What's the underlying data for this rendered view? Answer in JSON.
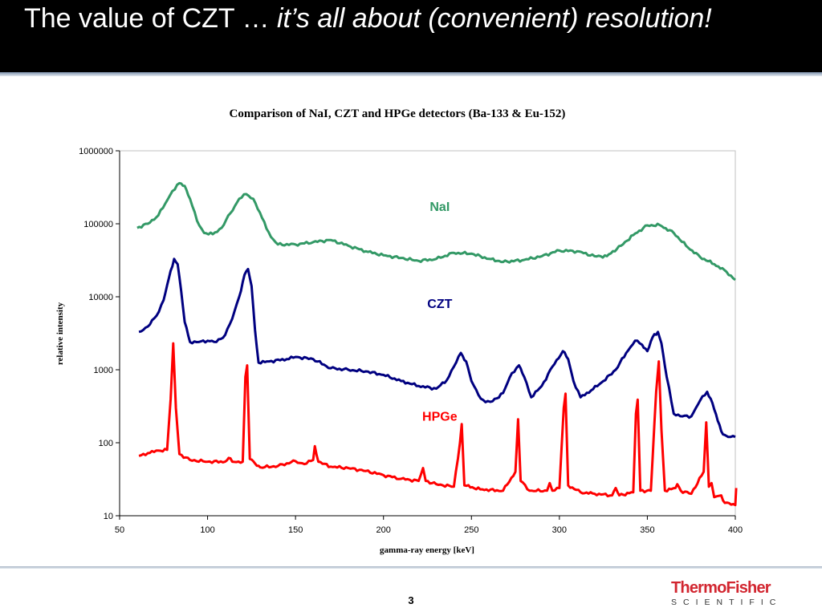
{
  "slide": {
    "title_plain": "The value of CZT … ",
    "title_italic": "it’s all about (convenient) resolution!",
    "page_number": "3",
    "logo_top": "ThermoFisher",
    "logo_bottom": "SCIENTIFIC"
  },
  "chart_data": {
    "type": "line",
    "title": "Comparison of NaI, CZT and HPGe detectors (Ba-133 & Eu-152)",
    "xlabel": "gamma-ray energy [keV]",
    "ylabel": "relative intensity",
    "xlim": [
      50,
      400
    ],
    "ylim": [
      10,
      1000000
    ],
    "y_scale": "log",
    "grid": false,
    "x_ticks": [
      "50",
      "100",
      "150",
      "200",
      "250",
      "300",
      "350",
      "400"
    ],
    "y_ticks": [
      "10",
      "100",
      "1000",
      "10000",
      "100000",
      "1000000"
    ],
    "annotations": [
      {
        "text": "NaI",
        "color": "#339966",
        "x": 232,
        "y": 150000
      },
      {
        "text": "CZT",
        "color": "#000080",
        "x": 232,
        "y": 7000
      },
      {
        "text": "HPGe",
        "color": "#ff0000",
        "x": 232,
        "y": 200
      }
    ],
    "series": [
      {
        "name": "NaI",
        "color": "#339966",
        "points": [
          [
            60,
            88000
          ],
          [
            66,
            100000
          ],
          [
            72,
            130000
          ],
          [
            76,
            190000
          ],
          [
            80,
            280000
          ],
          [
            84,
            360000
          ],
          [
            87,
            330000
          ],
          [
            90,
            220000
          ],
          [
            94,
            110000
          ],
          [
            98,
            75000
          ],
          [
            103,
            72000
          ],
          [
            108,
            88000
          ],
          [
            113,
            140000
          ],
          [
            118,
            220000
          ],
          [
            122,
            255000
          ],
          [
            126,
            220000
          ],
          [
            131,
            120000
          ],
          [
            136,
            66000
          ],
          [
            140,
            52000
          ],
          [
            150,
            52000
          ],
          [
            160,
            56000
          ],
          [
            170,
            60000
          ],
          [
            180,
            50000
          ],
          [
            190,
            42000
          ],
          [
            200,
            37000
          ],
          [
            210,
            34000
          ],
          [
            220,
            31000
          ],
          [
            230,
            33000
          ],
          [
            240,
            40000
          ],
          [
            250,
            39000
          ],
          [
            260,
            33000
          ],
          [
            268,
            30000
          ],
          [
            280,
            32000
          ],
          [
            290,
            36000
          ],
          [
            300,
            43000
          ],
          [
            310,
            42000
          ],
          [
            320,
            36000
          ],
          [
            327,
            36000
          ],
          [
            335,
            50000
          ],
          [
            342,
            70000
          ],
          [
            350,
            95000
          ],
          [
            357,
            96000
          ],
          [
            365,
            75000
          ],
          [
            372,
            50000
          ],
          [
            380,
            35000
          ],
          [
            388,
            28000
          ],
          [
            395,
            22000
          ],
          [
            400,
            17000
          ]
        ]
      },
      {
        "name": "CZT",
        "color": "#000080",
        "points": [
          [
            61,
            3300
          ],
          [
            66,
            3900
          ],
          [
            71,
            5500
          ],
          [
            75,
            9000
          ],
          [
            78,
            18000
          ],
          [
            81,
            33000
          ],
          [
            83,
            28000
          ],
          [
            85,
            12000
          ],
          [
            87,
            4500
          ],
          [
            90,
            2400
          ],
          [
            95,
            2400
          ],
          [
            100,
            2500
          ],
          [
            105,
            2400
          ],
          [
            110,
            3000
          ],
          [
            114,
            5000
          ],
          [
            118,
            10000
          ],
          [
            121,
            20000
          ],
          [
            123,
            24000
          ],
          [
            125,
            14000
          ],
          [
            127,
            3500
          ],
          [
            129,
            1250
          ],
          [
            135,
            1300
          ],
          [
            145,
            1400
          ],
          [
            150,
            1500
          ],
          [
            160,
            1400
          ],
          [
            170,
            1050
          ],
          [
            180,
            1000
          ],
          [
            190,
            950
          ],
          [
            200,
            850
          ],
          [
            210,
            700
          ],
          [
            220,
            600
          ],
          [
            230,
            550
          ],
          [
            236,
            720
          ],
          [
            240,
            1100
          ],
          [
            244,
            1700
          ],
          [
            247,
            1300
          ],
          [
            250,
            700
          ],
          [
            254,
            450
          ],
          [
            258,
            360
          ],
          [
            262,
            370
          ],
          [
            268,
            480
          ],
          [
            273,
            900
          ],
          [
            277,
            1150
          ],
          [
            280,
            800
          ],
          [
            284,
            420
          ],
          [
            290,
            600
          ],
          [
            296,
            1100
          ],
          [
            302,
            1800
          ],
          [
            305,
            1400
          ],
          [
            308,
            700
          ],
          [
            312,
            420
          ],
          [
            318,
            520
          ],
          [
            325,
            700
          ],
          [
            332,
            1000
          ],
          [
            338,
            1700
          ],
          [
            343,
            2500
          ],
          [
            347,
            2200
          ],
          [
            350,
            1800
          ],
          [
            353,
            2800
          ],
          [
            356,
            3300
          ],
          [
            358,
            2300
          ],
          [
            361,
            800
          ],
          [
            365,
            250
          ],
          [
            370,
            230
          ],
          [
            375,
            230
          ],
          [
            380,
            380
          ],
          [
            384,
            500
          ],
          [
            387,
            350
          ],
          [
            390,
            200
          ],
          [
            393,
            130
          ],
          [
            396,
            120
          ],
          [
            400,
            120
          ]
        ]
      },
      {
        "name": "HPGe",
        "color": "#ff0000",
        "points": [
          [
            61,
            66
          ],
          [
            66,
            72
          ],
          [
            72,
            78
          ],
          [
            77,
            80
          ],
          [
            79,
            400
          ],
          [
            80.5,
            2300
          ],
          [
            82,
            300
          ],
          [
            84,
            70
          ],
          [
            90,
            58
          ],
          [
            100,
            55
          ],
          [
            110,
            55
          ],
          [
            112,
            62
          ],
          [
            114,
            55
          ],
          [
            120,
            55
          ],
          [
            121.5,
            800
          ],
          [
            122.5,
            1150
          ],
          [
            124,
            60
          ],
          [
            127,
            52
          ],
          [
            130,
            46
          ],
          [
            140,
            48
          ],
          [
            150,
            56
          ],
          [
            155,
            51
          ],
          [
            160,
            58
          ],
          [
            161,
            90
          ],
          [
            163,
            55
          ],
          [
            170,
            47
          ],
          [
            180,
            45
          ],
          [
            190,
            41
          ],
          [
            200,
            36
          ],
          [
            210,
            32
          ],
          [
            220,
            30
          ],
          [
            222.5,
            45
          ],
          [
            224,
            30
          ],
          [
            230,
            27
          ],
          [
            240,
            25
          ],
          [
            243.5,
            100
          ],
          [
            244.5,
            180
          ],
          [
            246,
            26
          ],
          [
            255,
            23
          ],
          [
            268,
            22
          ],
          [
            275,
            40
          ],
          [
            276.5,
            210
          ],
          [
            278,
            30
          ],
          [
            283,
            22
          ],
          [
            293,
            22
          ],
          [
            294.5,
            28
          ],
          [
            296,
            22
          ],
          [
            300,
            24
          ],
          [
            302.5,
            300
          ],
          [
            303.5,
            470
          ],
          [
            305,
            26
          ],
          [
            312,
            21
          ],
          [
            320,
            20
          ],
          [
            330,
            19
          ],
          [
            332,
            24
          ],
          [
            334,
            19
          ],
          [
            342,
            21
          ],
          [
            343.5,
            250
          ],
          [
            344.5,
            390
          ],
          [
            346,
            22
          ],
          [
            352,
            22
          ],
          [
            355,
            500
          ],
          [
            356.5,
            1300
          ],
          [
            358,
            150
          ],
          [
            360,
            22
          ],
          [
            366,
            24
          ],
          [
            367,
            27
          ],
          [
            369,
            22
          ],
          [
            375,
            20
          ],
          [
            382,
            40
          ],
          [
            383.5,
            190
          ],
          [
            385,
            25
          ],
          [
            386.5,
            28
          ],
          [
            388,
            18
          ],
          [
            392,
            19
          ],
          [
            394,
            15
          ],
          [
            400,
            14
          ],
          [
            400.5,
            24
          ]
        ]
      }
    ]
  }
}
